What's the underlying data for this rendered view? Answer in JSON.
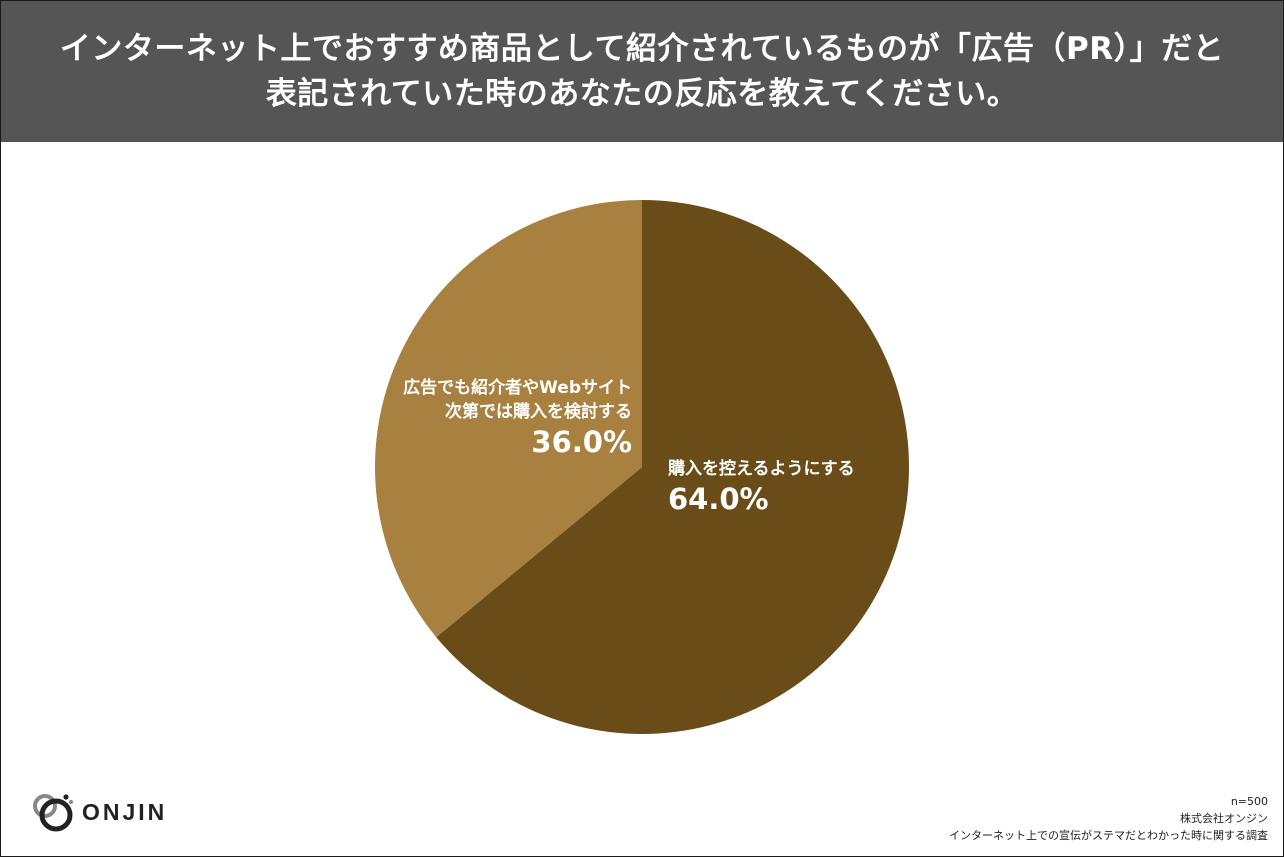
{
  "header": {
    "title_line1": "インターネット上でおすすめ商品として紹介されているものが「広告（PR）」だと",
    "title_line2": "表記されていた時のあなたの反応を教えてください。"
  },
  "chart_data": {
    "type": "pie",
    "title": "インターネット上でおすすめ商品として紹介されているものが「広告（PR）」だと表記されていた時のあなたの反応を教えてください。",
    "slices": [
      {
        "label": "購入を控えるようにする",
        "value": 64.0,
        "value_label": "64.0%",
        "color": "#6a4c18"
      },
      {
        "label_lines": [
          "広告でも紹介者やWebサイト",
          "次第では購入を検討する"
        ],
        "value": 36.0,
        "value_label": "36.0%",
        "color": "#a8803f"
      }
    ],
    "start": "12 o'clock",
    "direction": "clockwise"
  },
  "logo": {
    "text": "ONJIN",
    "colors": {
      "mark": "#222222",
      "dot": "#888888"
    }
  },
  "footer": {
    "sample": "n=500",
    "company": "株式会社オンジン",
    "survey": "インターネット上での宣伝がステマだとわかった時に関する調査"
  },
  "colors": {
    "header_bg": "#555555",
    "header_text": "#ffffff",
    "slice_dark": "#6a4c18",
    "slice_light": "#a8803f"
  }
}
